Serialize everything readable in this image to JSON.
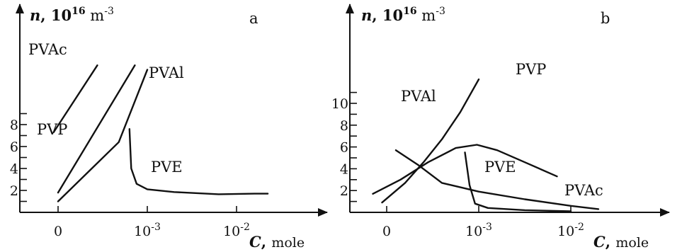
{
  "chart_data": [
    {
      "type": "line",
      "panel": "a",
      "ylabel": {
        "symbol": "n",
        "unit": "10",
        "exp": "16",
        "unit2": "m",
        "exp2": "-3"
      },
      "xlabel": {
        "symbol": "C",
        "unit": "mole"
      },
      "yticks": [
        2,
        4,
        6,
        8
      ],
      "xticks": [
        {
          "base": "0",
          "exp": "",
          "x": 0
        },
        {
          "base": "10",
          "exp": "-3",
          "x": 1
        },
        {
          "base": "10",
          "exp": "-2",
          "x": 2
        }
      ],
      "xlim": [
        -0.4,
        2.8
      ],
      "ylim": [
        0,
        14
      ],
      "series": [
        {
          "name": "PVAc",
          "points": [
            [
              -0.05,
              7.3
            ],
            [
              0.44,
              13.4
            ]
          ]
        },
        {
          "name": "PVP",
          "points": [
            [
              0.0,
              1.8
            ],
            [
              0.86,
              13.4
            ]
          ]
        },
        {
          "name": "PVAl",
          "points": [
            [
              0.0,
              1.0
            ],
            [
              0.68,
              6.4
            ],
            [
              1.0,
              13.0
            ]
          ]
        },
        {
          "name": "PVE",
          "points": [
            [
              0.8,
              7.6
            ],
            [
              0.82,
              4.0
            ],
            [
              0.88,
              2.6
            ],
            [
              1.0,
              2.1
            ],
            [
              1.3,
              1.85
            ],
            [
              1.8,
              1.65
            ],
            [
              2.2,
              1.7
            ],
            [
              2.35,
              1.7
            ]
          ]
        }
      ]
    },
    {
      "type": "line",
      "panel": "b",
      "ylabel": {
        "symbol": "n",
        "unit": "10",
        "exp": "16",
        "unit2": "m",
        "exp2": "-3"
      },
      "xlabel": {
        "symbol": "C",
        "unit": "mole"
      },
      "yticks": [
        2,
        4,
        6,
        8,
        10
      ],
      "xticks": [
        {
          "base": "0",
          "exp": "",
          "x": 0
        },
        {
          "base": "10",
          "exp": "-3",
          "x": 1
        },
        {
          "base": "10",
          "exp": "-2",
          "x": 2
        }
      ],
      "xlim": [
        -0.3,
        2.7
      ],
      "ylim": [
        0,
        13
      ],
      "series": [
        {
          "name": "PVAl",
          "points": [
            [
              -0.05,
              0.9
            ],
            [
              0.2,
              2.7
            ],
            [
              0.4,
              4.6
            ],
            [
              0.6,
              6.7
            ],
            [
              0.8,
              9.2
            ],
            [
              1.0,
              12.2
            ]
          ]
        },
        {
          "name": "PVP",
          "points": [
            [
              -0.15,
              1.7
            ],
            [
              0.15,
              3.0
            ],
            [
              0.45,
              4.6
            ],
            [
              0.75,
              5.9
            ],
            [
              0.98,
              6.2
            ],
            [
              1.2,
              5.7
            ],
            [
              1.5,
              4.6
            ],
            [
              1.85,
              3.3
            ]
          ]
        },
        {
          "name": "PVAc",
          "points": [
            [
              0.1,
              5.7
            ],
            [
              0.35,
              4.3
            ],
            [
              0.6,
              2.7
            ],
            [
              1.0,
              1.9
            ],
            [
              1.5,
              1.2
            ],
            [
              2.0,
              0.6
            ],
            [
              2.3,
              0.3
            ]
          ]
        },
        {
          "name": "PVE",
          "points": [
            [
              0.85,
              5.5
            ],
            [
              0.9,
              2.5
            ],
            [
              0.96,
              0.8
            ],
            [
              1.1,
              0.4
            ],
            [
              1.5,
              0.2
            ],
            [
              2.0,
              0.1
            ]
          ]
        }
      ]
    }
  ]
}
